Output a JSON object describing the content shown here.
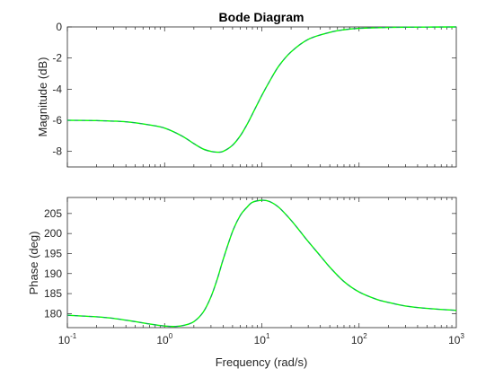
{
  "chart_data": {
    "type": "line",
    "title": "Bode Diagram",
    "xlabel": "Frequency (rad/s)",
    "x_scale": "log",
    "xlim": [
      0.1,
      1000
    ],
    "x_tick_labels": [
      {
        "base": "10",
        "exp": "-1"
      },
      {
        "base": "10",
        "exp": "0"
      },
      {
        "base": "10",
        "exp": "1"
      },
      {
        "base": "10",
        "exp": "2"
      },
      {
        "base": "10",
        "exp": "3"
      }
    ],
    "grid": false,
    "colors": {
      "curve": "#00ff00",
      "curve_dash": "#2a52be",
      "axis": "#262626",
      "tick": "#262626",
      "title": "#000000"
    },
    "panels": [
      {
        "name": "magnitude",
        "ylabel": "Magnitude (dB)",
        "ylim": [
          -9,
          0
        ],
        "yticks": [
          0,
          -2,
          -4,
          -6,
          -8
        ],
        "ytick_labels": [
          "0",
          "-2",
          "-4",
          "-6",
          "-8"
        ],
        "x": [
          0.1,
          0.2,
          0.4,
          0.7,
          1,
          1.5,
          2,
          2.5,
          3,
          3.5,
          4,
          5,
          6,
          7,
          8,
          10,
          12,
          15,
          20,
          30,
          50,
          70,
          100,
          200,
          500,
          1000
        ],
        "y": [
          -6.0,
          -6.02,
          -6.1,
          -6.3,
          -6.5,
          -7.0,
          -7.5,
          -7.85,
          -8.0,
          -8.05,
          -8.0,
          -7.6,
          -7.0,
          -6.3,
          -5.6,
          -4.4,
          -3.5,
          -2.5,
          -1.6,
          -0.8,
          -0.35,
          -0.18,
          -0.09,
          -0.03,
          -0.01,
          0.0
        ]
      },
      {
        "name": "phase",
        "ylabel": "Phase (deg)",
        "ylim": [
          176.5,
          209
        ],
        "yticks": [
          180,
          185,
          190,
          195,
          200,
          205
        ],
        "ytick_labels": [
          "180",
          "185",
          "190",
          "195",
          "200",
          "205"
        ],
        "x": [
          0.1,
          0.2,
          0.3,
          0.5,
          0.7,
          1,
          1.3,
          1.6,
          2,
          2.5,
          3,
          3.5,
          4,
          5,
          6,
          7,
          8,
          10,
          12,
          15,
          20,
          25,
          30,
          40,
          50,
          70,
          100,
          150,
          200,
          300,
          500,
          1000
        ],
        "y": [
          179.6,
          179.2,
          178.8,
          178.0,
          177.4,
          176.9,
          176.8,
          177.1,
          178.0,
          180.4,
          184.2,
          188.8,
          193.5,
          200.5,
          204.5,
          206.5,
          207.8,
          208.3,
          208.0,
          206.5,
          203.3,
          200.4,
          198.0,
          194.4,
          191.6,
          188.0,
          185.4,
          183.6,
          182.8,
          181.9,
          181.3,
          180.8
        ]
      }
    ]
  }
}
